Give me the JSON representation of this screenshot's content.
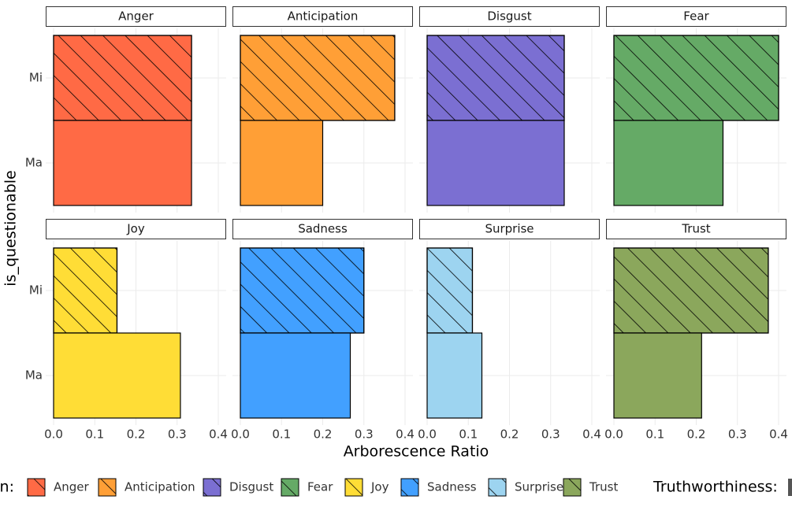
{
  "chart_data": {
    "type": "bar",
    "orientation": "horizontal",
    "hatch_category": "Mi",
    "x_label": "Arborescence Ratio",
    "y_label": "is_questionable",
    "categories": [
      "Mi",
      "Ma"
    ],
    "xlim": [
      0,
      0.4
    ],
    "xticks": [
      {
        "value": 0,
        "label": "0.0"
      },
      0.1,
      0.2,
      0.3,
      0.4
    ],
    "grid": true,
    "legend_title": "n:",
    "legend2_title": "Truthworthiness:",
    "legend_position": "bottom",
    "facets": [
      {
        "name": "Anger",
        "color": "#ff6a45",
        "values": [
          0.335,
          0.335
        ]
      },
      {
        "name": "Anticipation",
        "color": "#ff9f36",
        "values": [
          0.375,
          0.2
        ]
      },
      {
        "name": "Disgust",
        "color": "#7b6fd2",
        "values": [
          0.333,
          0.333
        ]
      },
      {
        "name": "Fear",
        "color": "#65aa66",
        "values": [
          0.4,
          0.265
        ]
      },
      {
        "name": "Joy",
        "color": "#ffdd36",
        "values": [
          0.154,
          0.308
        ]
      },
      {
        "name": "Sadness",
        "color": "#42a0ff",
        "values": [
          0.3,
          0.267
        ]
      },
      {
        "name": "Surprise",
        "color": "#9dd4f0",
        "values": [
          0.11,
          0.133
        ]
      },
      {
        "name": "Trust",
        "color": "#8ba75c",
        "values": [
          0.375,
          0.213
        ]
      }
    ]
  }
}
